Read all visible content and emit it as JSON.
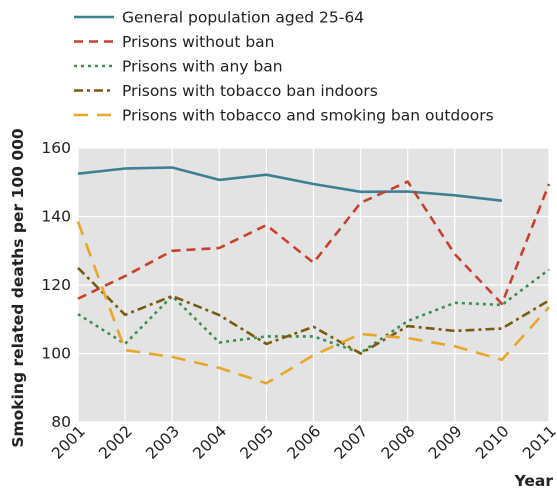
{
  "chart_data": {
    "type": "line",
    "title": "",
    "xlabel": "Year",
    "ylabel": "Smoking related deaths per 100 000",
    "ylim": [
      80,
      160
    ],
    "yticks": [
      80,
      100,
      120,
      140,
      160
    ],
    "x": [
      "2001",
      "2002",
      "2003",
      "2004",
      "2005",
      "2006",
      "2007",
      "2008",
      "2009",
      "2010",
      "2011"
    ],
    "grid": true,
    "plot_background": "#e3e3e3",
    "legend_position": "top-left",
    "series": [
      {
        "name": "General population aged 25-64",
        "color": "#3f7f93",
        "dash": "solid",
        "values": [
          152.5,
          154,
          154.3,
          150.7,
          152.2,
          149.5,
          147.2,
          147.3,
          146.2,
          144.6,
          null
        ]
      },
      {
        "name": "Prisons without ban",
        "color": "#c8412c",
        "dash": "dash",
        "values": [
          116,
          122.6,
          130,
          130.8,
          137.5,
          126.5,
          144,
          150.2,
          129,
          114.5,
          149.5
        ]
      },
      {
        "name": "Prisons with any ban",
        "color": "#3b8f50",
        "dash": "dot",
        "values": [
          111.5,
          102.8,
          116.8,
          103.2,
          105,
          105,
          100.2,
          109.5,
          114.8,
          114.2,
          124.5
        ]
      },
      {
        "name": "Prisons with tobacco ban indoors",
        "color": "#7a5a10",
        "dash": "dashdot",
        "values": [
          125,
          111.3,
          116.8,
          111.2,
          102.8,
          107.8,
          100,
          108,
          106.6,
          107.3,
          115.5
        ]
      },
      {
        "name": "Prisons with tobacco and smoking ban outdoors",
        "color": "#e8a62b",
        "dash": "longdash",
        "values": [
          138.5,
          101,
          99,
          95.8,
          91.3,
          99.5,
          105.7,
          104.5,
          102.1,
          98.2,
          113.5
        ]
      }
    ]
  }
}
